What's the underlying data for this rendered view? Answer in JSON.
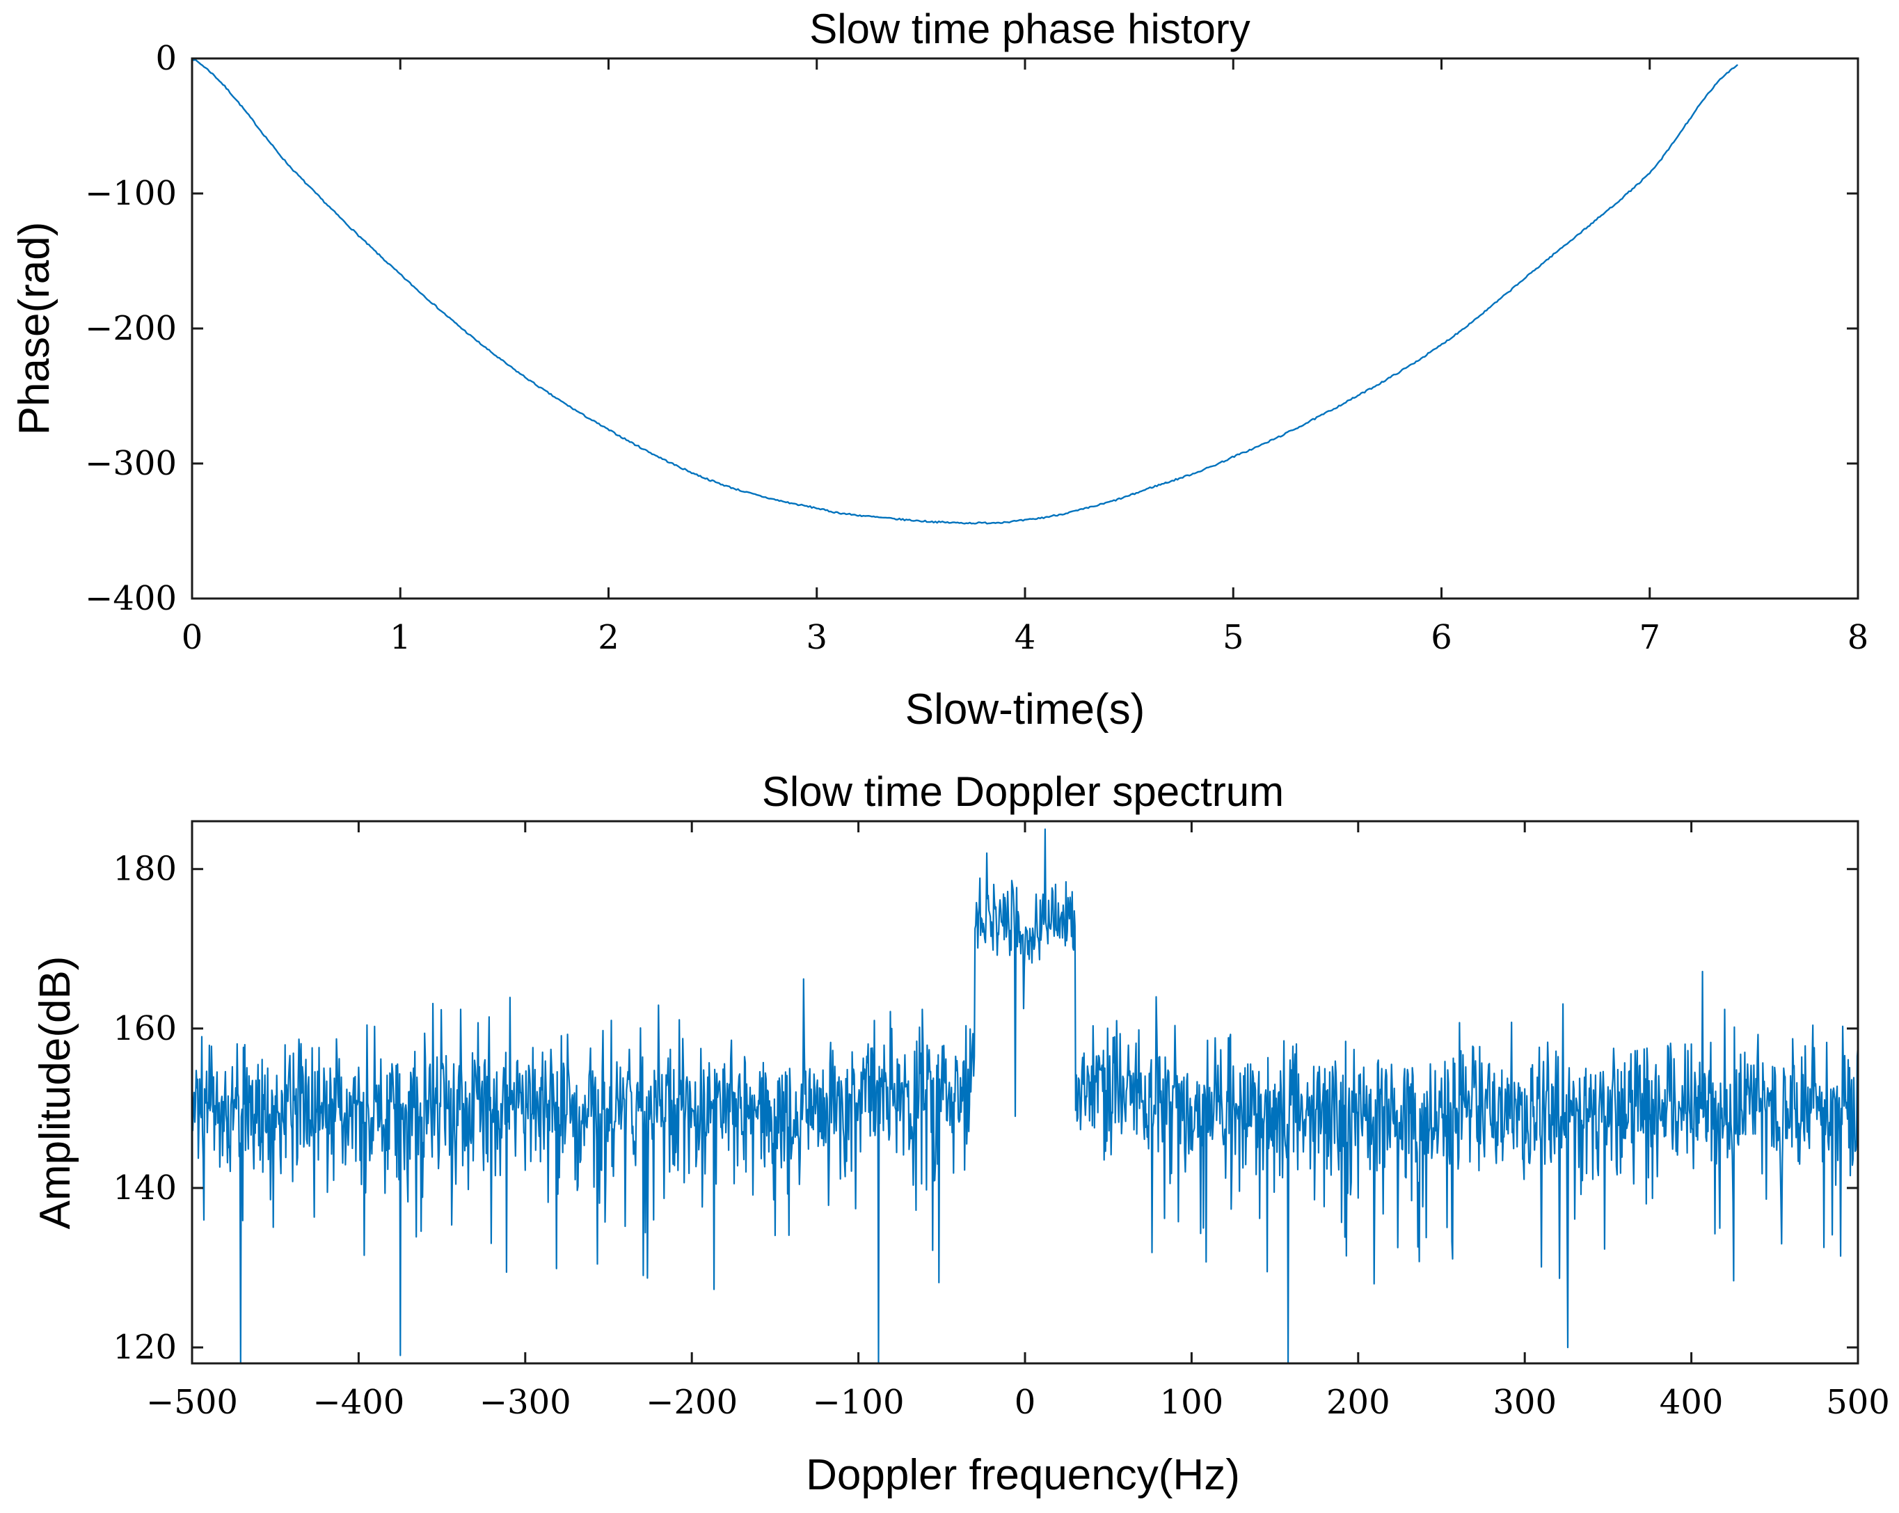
{
  "chart_data": [
    {
      "type": "line",
      "title": "Slow time phase history",
      "xlabel": "Slow-time(s)",
      "ylabel": "Phase(rad)",
      "xlim": [
        0,
        8
      ],
      "ylim": [
        -400,
        0
      ],
      "x_ticks": [
        0,
        1,
        2,
        3,
        4,
        5,
        6,
        7,
        8
      ],
      "x_tick_labels": [
        "0",
        "1",
        "2",
        "3",
        "4",
        "5",
        "6",
        "7",
        "8"
      ],
      "y_ticks": [
        0,
        -100,
        -200,
        -300,
        -400
      ],
      "y_tick_labels": [
        "0",
        "−100",
        "−200",
        "−300",
        "−400"
      ],
      "grid": false,
      "series": [
        {
          "name": "phase",
          "color": "#0072BD",
          "x": [
            0,
            0.5,
            1.0,
            1.5,
            2.0,
            2.5,
            3.0,
            3.3,
            3.7,
            4.0,
            4.3,
            4.6,
            5.0,
            5.5,
            6.0,
            6.5,
            7.0,
            7.42
          ],
          "y": [
            0,
            -85,
            -160,
            -225,
            -275,
            -313,
            -333,
            -340,
            -344,
            -342,
            -333,
            -318,
            -295,
            -258,
            -212,
            -150,
            -85,
            -5
          ]
        }
      ]
    },
    {
      "type": "line",
      "title": "Slow time Doppler spectrum",
      "xlabel": "Doppler frequency(Hz)",
      "ylabel": "Amplitude(dB)",
      "xlim": [
        -500,
        500
      ],
      "ylim": [
        118,
        186
      ],
      "x_ticks": [
        -500,
        -400,
        -300,
        -200,
        -100,
        0,
        100,
        200,
        300,
        400,
        500
      ],
      "x_tick_labels": [
        "−500",
        "−400",
        "−300",
        "−200",
        "−100",
        "0",
        "100",
        "200",
        "300",
        "400",
        "500"
      ],
      "y_ticks": [
        120,
        140,
        160,
        180
      ],
      "y_tick_labels": [
        "120",
        "140",
        "160",
        "180"
      ],
      "grid": false,
      "series": [
        {
          "name": "spectrum",
          "color": "#0072BD",
          "noise_floor_db": 150,
          "passband_hz": [
            -30,
            30
          ],
          "passband_level_db": 174,
          "peaks": [
            {
              "x": -23,
              "y": 182
            },
            {
              "x": 12,
              "y": 185
            }
          ],
          "deep_dips": [
            {
              "x": -471,
              "y": 118
            },
            {
              "x": -375,
              "y": 119
            },
            {
              "x": -88,
              "y": 118
            },
            {
              "x": 158,
              "y": 118
            },
            {
              "x": 326,
              "y": 120
            }
          ]
        }
      ]
    }
  ]
}
